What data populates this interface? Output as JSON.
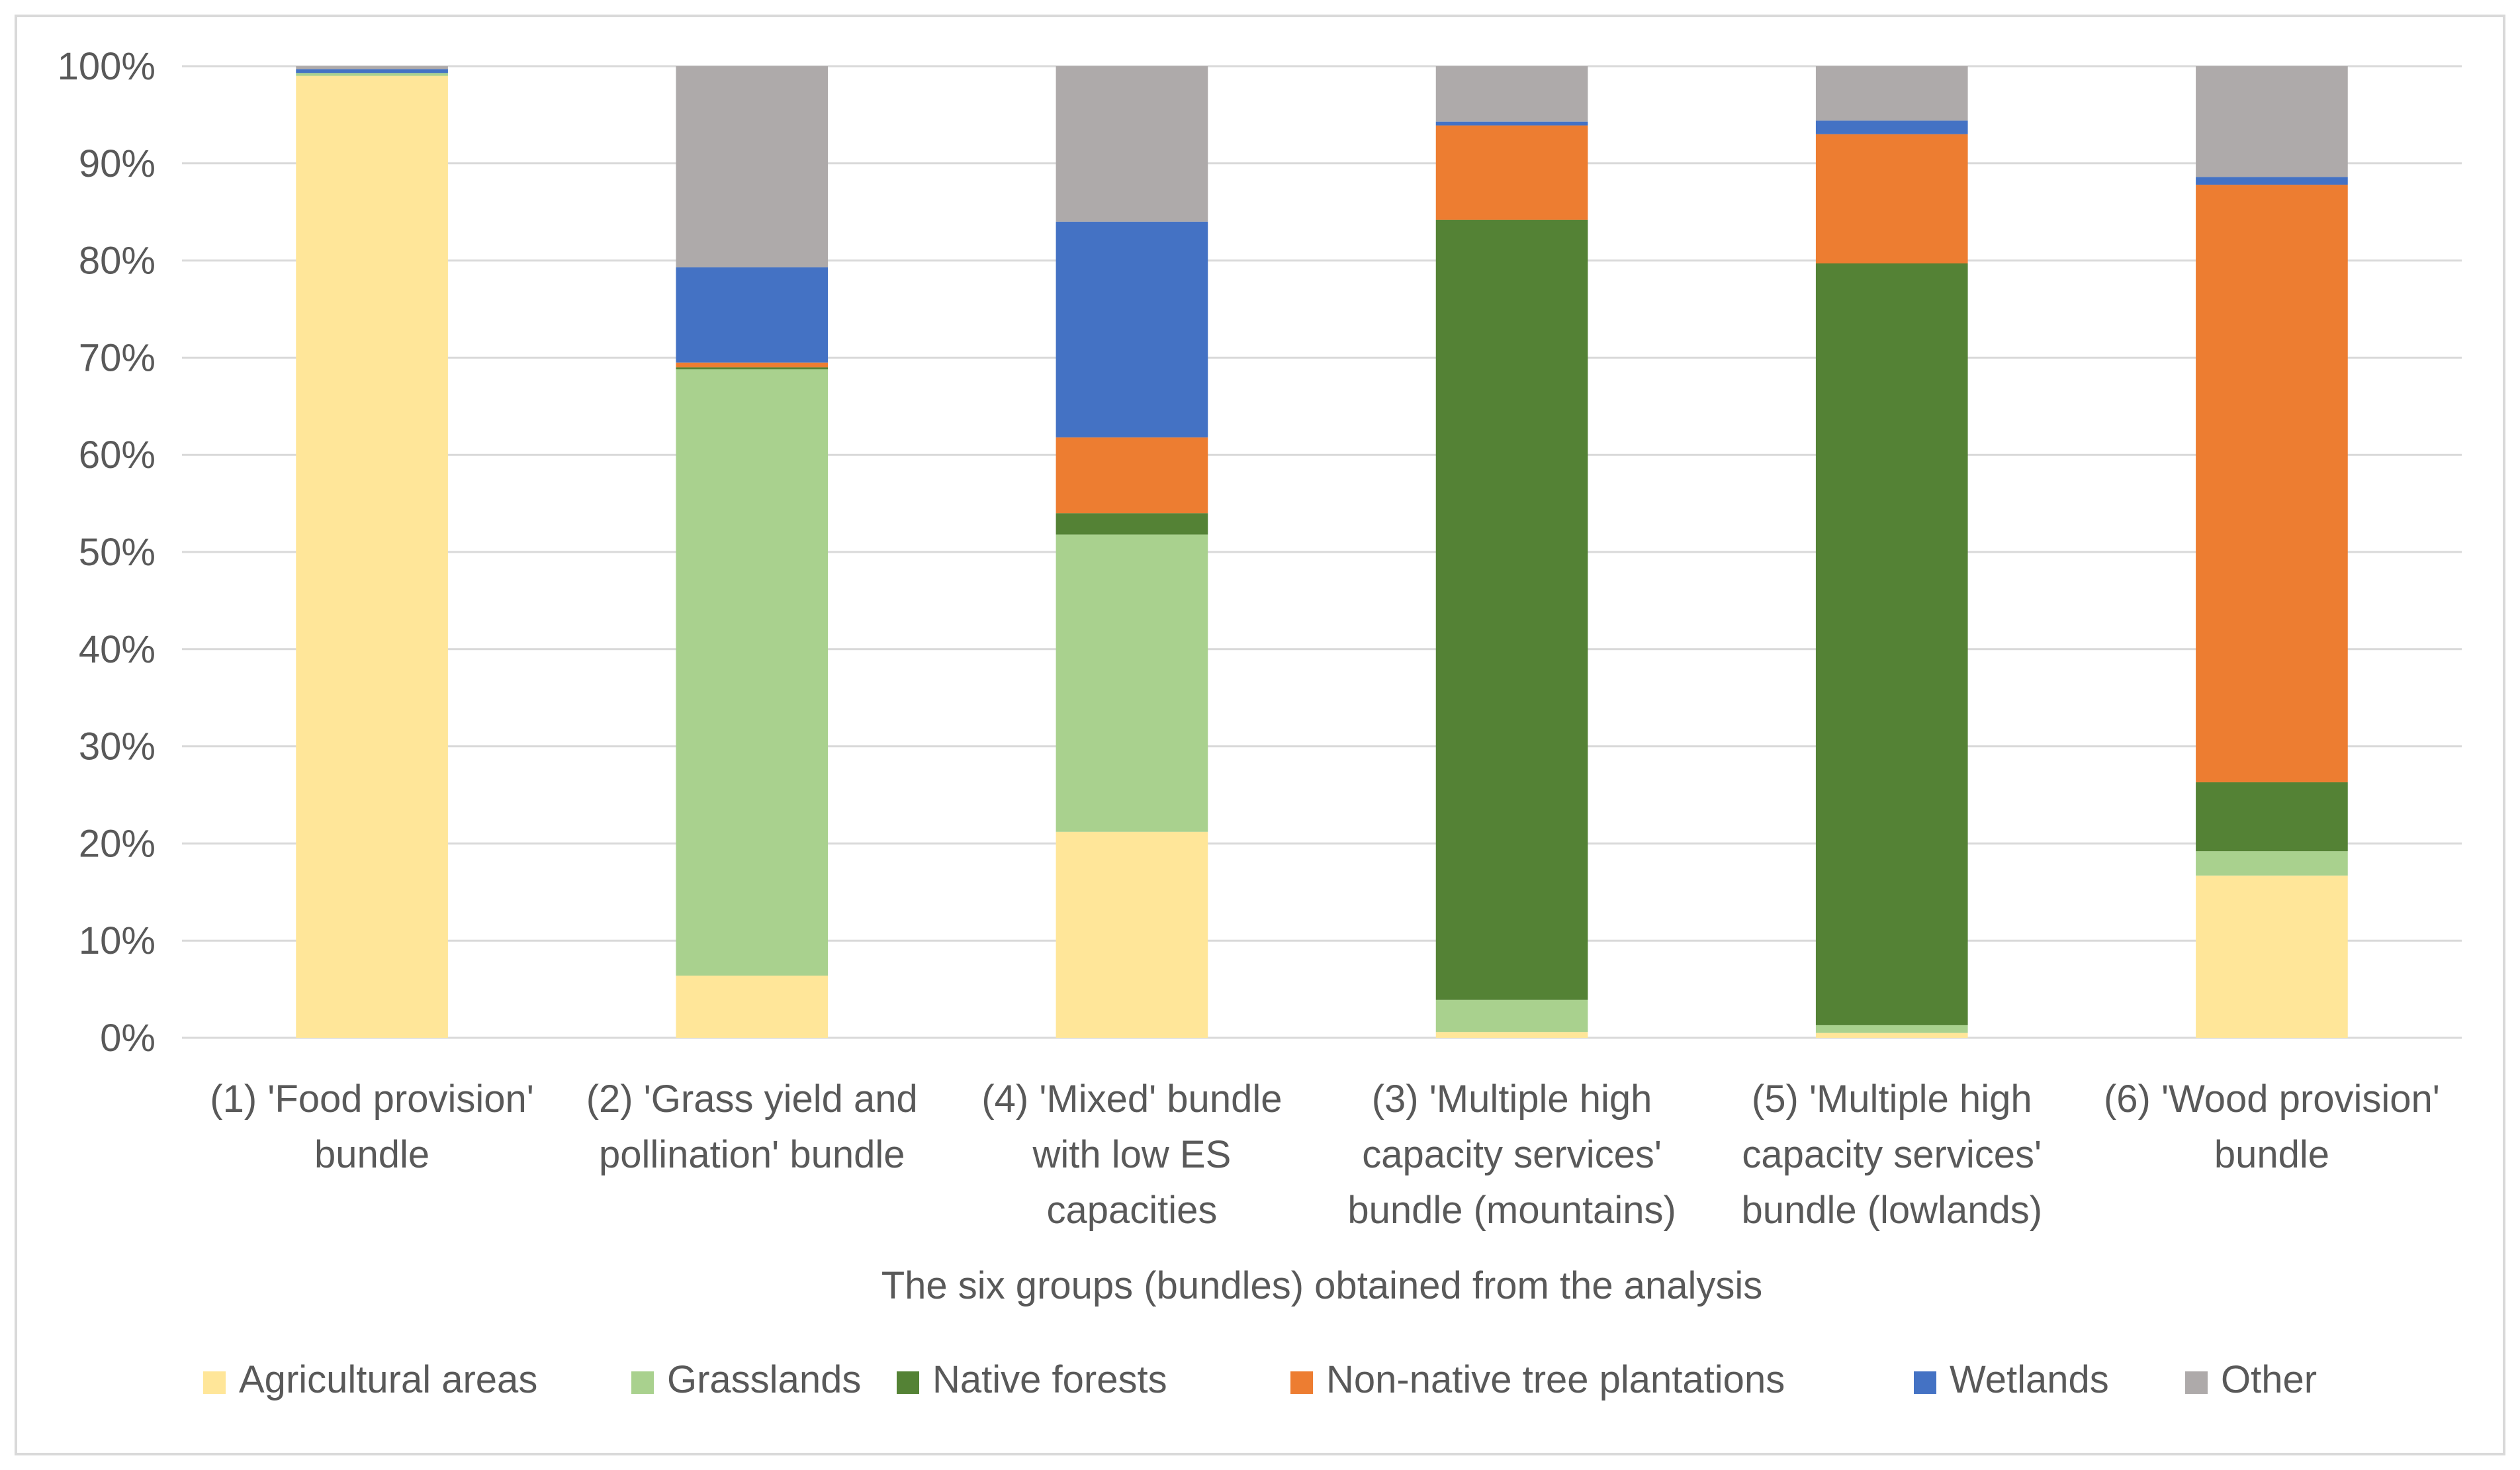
{
  "chart_data": {
    "type": "bar",
    "stacked": true,
    "percent": true,
    "title": "",
    "xlabel": "The six groups (bundles) obtained from the analysis",
    "ylabel": "",
    "ylim": [
      0,
      100
    ],
    "y_ticks": [
      "0%",
      "10%",
      "20%",
      "30%",
      "40%",
      "50%",
      "60%",
      "70%",
      "80%",
      "90%",
      "100%"
    ],
    "grid": true,
    "legend_position": "bottom",
    "categories": [
      [
        "(1) 'Food provision'",
        "bundle"
      ],
      [
        "(2) 'Grass yield and",
        "pollination' bundle"
      ],
      [
        "(4) 'Mixed' bundle",
        "with low ES",
        "capacities"
      ],
      [
        "(3) 'Multiple high",
        "capacity services'",
        "bundle (mountains)"
      ],
      [
        "(5) 'Multiple high",
        "capacity services'",
        "bundle (lowlands)"
      ],
      [
        "(6) 'Wood provision'",
        "bundle"
      ]
    ],
    "series": [
      {
        "name": "Agricultural areas",
        "color": "#FFE699",
        "values": [
          99.0,
          6.4,
          21.2,
          0.6,
          0.5,
          16.7
        ]
      },
      {
        "name": "Grasslands",
        "color": "#A9D18E",
        "values": [
          0.3,
          62.4,
          30.6,
          3.3,
          0.8,
          2.5
        ]
      },
      {
        "name": "Native forests",
        "color": "#548235",
        "values": [
          0.0,
          0.2,
          2.2,
          80.3,
          78.4,
          7.1
        ]
      },
      {
        "name": "Non-native tree plantations",
        "color": "#ED7D31",
        "values": [
          0.0,
          0.5,
          7.8,
          9.7,
          13.3,
          61.5
        ]
      },
      {
        "name": "Wetlands",
        "color": "#4472C4",
        "values": [
          0.4,
          9.8,
          22.2,
          0.4,
          1.4,
          0.8
        ]
      },
      {
        "name": "Other",
        "color": "#AEAAAA",
        "values": [
          0.3,
          20.7,
          16.0,
          5.7,
          5.6,
          11.4
        ]
      }
    ]
  }
}
